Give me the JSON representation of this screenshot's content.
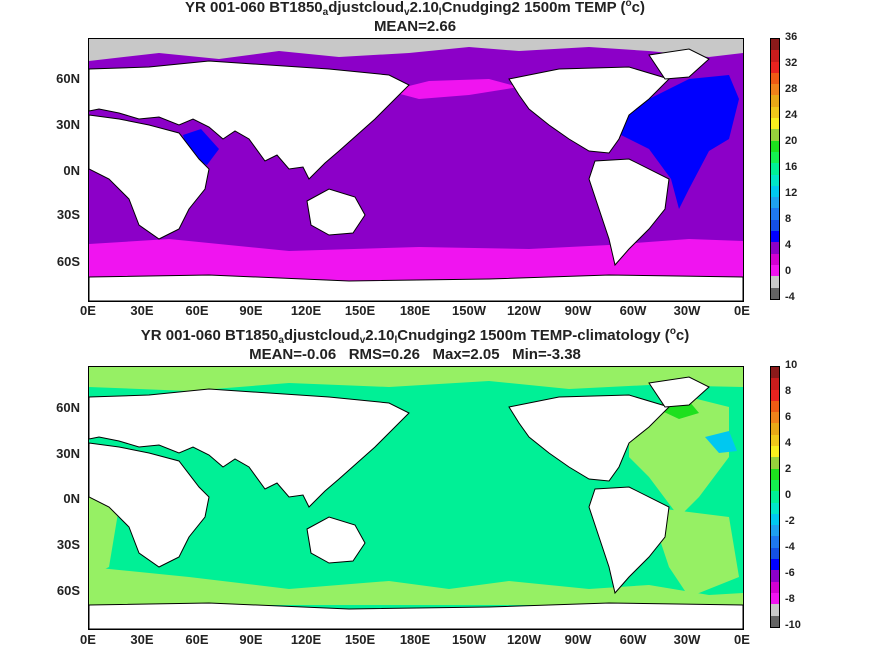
{
  "map_top": {
    "title_prefix": "YR 001-060 BT1850",
    "title_sub1": "a",
    "title_mid": "djustcloud",
    "title_sub2": "v",
    "title_mid2": "2.10",
    "title_sub3": "l",
    "title_suffix": "Cnudging2 1500m TEMP (",
    "title_sup": "o",
    "title_end": "c)",
    "stats": "MEAN=2.66",
    "lat_labels": [
      "60N",
      "30N",
      "0N",
      "30S",
      "60S"
    ],
    "lon_labels": [
      "0E",
      "30E",
      "60E",
      "90E",
      "120E",
      "150E",
      "180E",
      "150W",
      "120W",
      "90W",
      "60W",
      "30W",
      "0E"
    ],
    "colorbar_labels": [
      "36",
      "32",
      "28",
      "24",
      "20",
      "16",
      "12",
      "8",
      "4",
      "0",
      "-4"
    ],
    "colorbar_colors": [
      "#8b1a1a",
      "#c81c1c",
      "#e8231f",
      "#ee5a14",
      "#f0821a",
      "#e8a817",
      "#f0c81a",
      "#f8f01e",
      "#96d23c",
      "#1ee01e",
      "#14f050",
      "#00f096",
      "#00e6c8",
      "#00c8f0",
      "#1ea0f0",
      "#1e78f0",
      "#1450e6",
      "#0000ff",
      "#8c00c8",
      "#d200d2",
      "#f014f0",
      "#c8c8c8",
      "#646464"
    ]
  },
  "map_bottom": {
    "title_prefix": "YR 001-060 BT1850",
    "title_sub1": "a",
    "title_mid": "djustcloud",
    "title_sub2": "v",
    "title_mid2": "2.10",
    "title_sub3": "l",
    "title_suffix": "Cnudging2 1500m TEMP-climatology (",
    "title_sup": "o",
    "title_end": "c)",
    "stats": "MEAN=-0.06   RMS=0.26   Max=2.05   Min=-3.38",
    "lat_labels": [
      "60N",
      "30N",
      "0N",
      "30S",
      "60S"
    ],
    "lon_labels": [
      "0E",
      "30E",
      "60E",
      "90E",
      "120E",
      "150E",
      "180E",
      "150W",
      "120W",
      "90W",
      "60W",
      "30W",
      "0E"
    ],
    "colorbar_labels": [
      "10",
      "8",
      "6",
      "4",
      "2",
      "0",
      "-2",
      "-4",
      "-6",
      "-8",
      "-10"
    ],
    "colorbar_colors": [
      "#8b1a1a",
      "#c81c1c",
      "#e8231f",
      "#ee5a14",
      "#f0821a",
      "#e8a817",
      "#f0c81a",
      "#f8f01e",
      "#96d23c",
      "#1ee01e",
      "#14f050",
      "#00f096",
      "#00e6c8",
      "#00c8f0",
      "#1ea0f0",
      "#1e78f0",
      "#1450e6",
      "#0000ff",
      "#8c00c8",
      "#d200d2",
      "#f014f0",
      "#c8c8c8",
      "#646464"
    ]
  },
  "colors": {
    "ocean_top": "#8c00c8",
    "deep_south_top": "#f014f0",
    "north_atlantic_top": "#0000ff",
    "ice": "#c8c8c8",
    "ocean_bottom": "#00f096",
    "anomaly_pos_bottom": "#96f064",
    "anomaly_hi_bottom": "#1ee01e",
    "anomaly_neg_bottom": "#00c8f0",
    "land": "#ffffff",
    "coast": "#000000"
  }
}
